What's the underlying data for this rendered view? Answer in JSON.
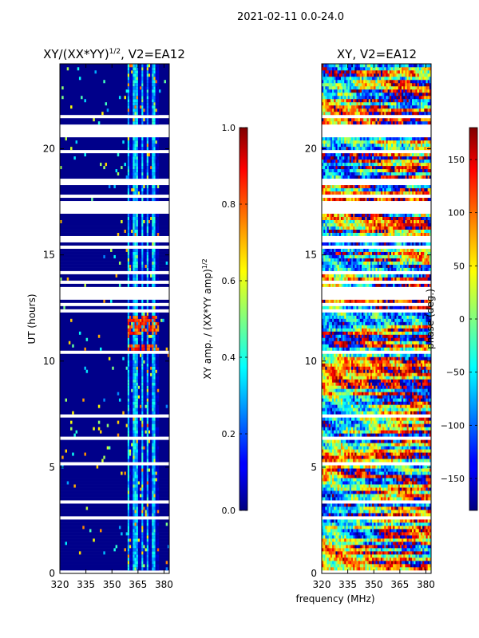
{
  "figure_title": "2021-02-11 0.0-24.0",
  "chart_data": [
    {
      "type": "heatmap",
      "title_main": "XY/(XX*YY)",
      "title_exp": "1/2",
      "title_rest": ", V2=EA12",
      "ylabel": "UT (hours)",
      "xlabel": "",
      "x_ticks": [
        "320",
        "335",
        "350",
        "365",
        "380"
      ],
      "x_tick_values": [
        320,
        335,
        350,
        365,
        380
      ],
      "xlim": [
        320,
        383
      ],
      "y_ticks": [
        "0",
        "5",
        "10",
        "15",
        "20"
      ],
      "y_tick_values": [
        0,
        5,
        10,
        15,
        20
      ],
      "ylim": [
        0,
        24
      ],
      "active_band_mhz": [
        359,
        377
      ],
      "stripe_columns_mhz": [
        361,
        366,
        369,
        372,
        376
      ],
      "high_amp_rows_hours": [
        10.6,
        11.5,
        11.9
      ],
      "colorbar": {
        "label_main": "XY amp. / (XX*YY amp)",
        "label_exp": "1/2",
        "range": [
          0.0,
          1.0
        ],
        "tick_values": [
          0.0,
          0.2,
          0.4,
          0.6,
          0.8,
          1.0
        ],
        "tick_labels": [
          "0.0",
          "0.2",
          "0.4",
          "0.6",
          "0.8",
          "1.0"
        ]
      }
    },
    {
      "type": "heatmap",
      "title": "XY, V2=EA12",
      "xlabel": "frequency (MHz)",
      "ylabel": "",
      "x_ticks": [
        "320",
        "335",
        "350",
        "365",
        "380"
      ],
      "x_tick_values": [
        320,
        335,
        350,
        365,
        380
      ],
      "xlim": [
        320,
        383
      ],
      "y_ticks": [
        "0",
        "5",
        "10",
        "15",
        "20"
      ],
      "y_tick_values": [
        0,
        5,
        10,
        15,
        20
      ],
      "ylim": [
        0,
        24
      ],
      "colorbar": {
        "label": "phase (deg.)",
        "range": [
          -180,
          180
        ],
        "tick_values": [
          -150,
          -100,
          -50,
          0,
          50,
          100,
          150
        ],
        "tick_labels": [
          "−150",
          "−100",
          "−50",
          "0",
          "50",
          "100",
          "150"
        ]
      }
    }
  ]
}
